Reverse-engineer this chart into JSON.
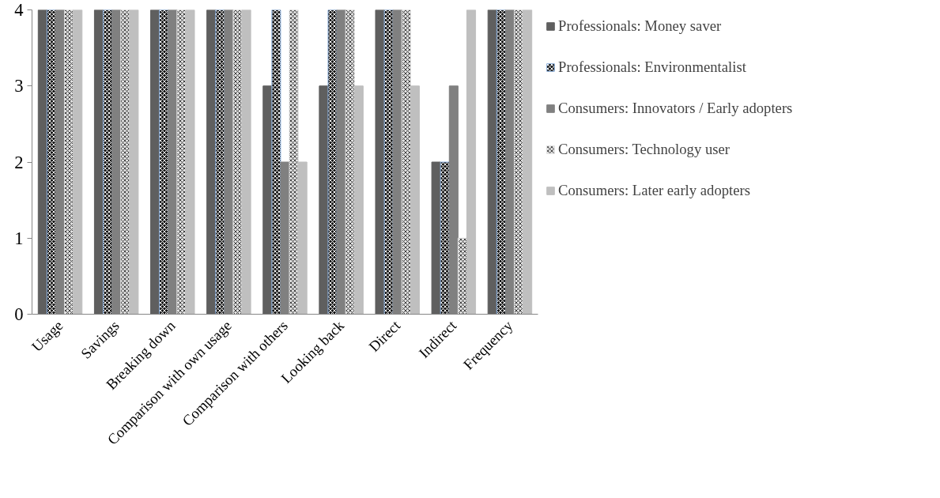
{
  "chart_data": {
    "type": "bar",
    "categories": [
      "Usage",
      "Savings",
      "Breaking down",
      "Comparison with own usage",
      "Comparison with others",
      "Looking back",
      "Direct",
      "Indirect",
      "Frequency"
    ],
    "series": [
      {
        "name": "Professionals: Money saver",
        "color": "#5f5f5f",
        "values": [
          4,
          4,
          4,
          4,
          3,
          3,
          4,
          2,
          4
        ]
      },
      {
        "name": "Professionals: Environmentalist",
        "color": "#1a1a1a",
        "values": [
          4,
          4,
          4,
          4,
          4,
          4,
          4,
          2,
          4
        ]
      },
      {
        "name": "Consumers: Innovators / Early adopters",
        "color": "#808080",
        "values": [
          4,
          4,
          4,
          4,
          2,
          4,
          4,
          3,
          4
        ]
      },
      {
        "name": "Consumers: Technology user",
        "color": "#e0e0e0",
        "values": [
          4,
          4,
          4,
          4,
          4,
          4,
          4,
          1,
          4
        ]
      },
      {
        "name": "Consumers: Later early adopters",
        "color": "#bfbfbf",
        "values": [
          4,
          4,
          4,
          4,
          2,
          3,
          3,
          4,
          4
        ]
      }
    ],
    "ylim": [
      0,
      4
    ],
    "yticks": [
      0,
      1,
      2,
      3,
      4
    ],
    "grid": false,
    "legend": "right"
  }
}
